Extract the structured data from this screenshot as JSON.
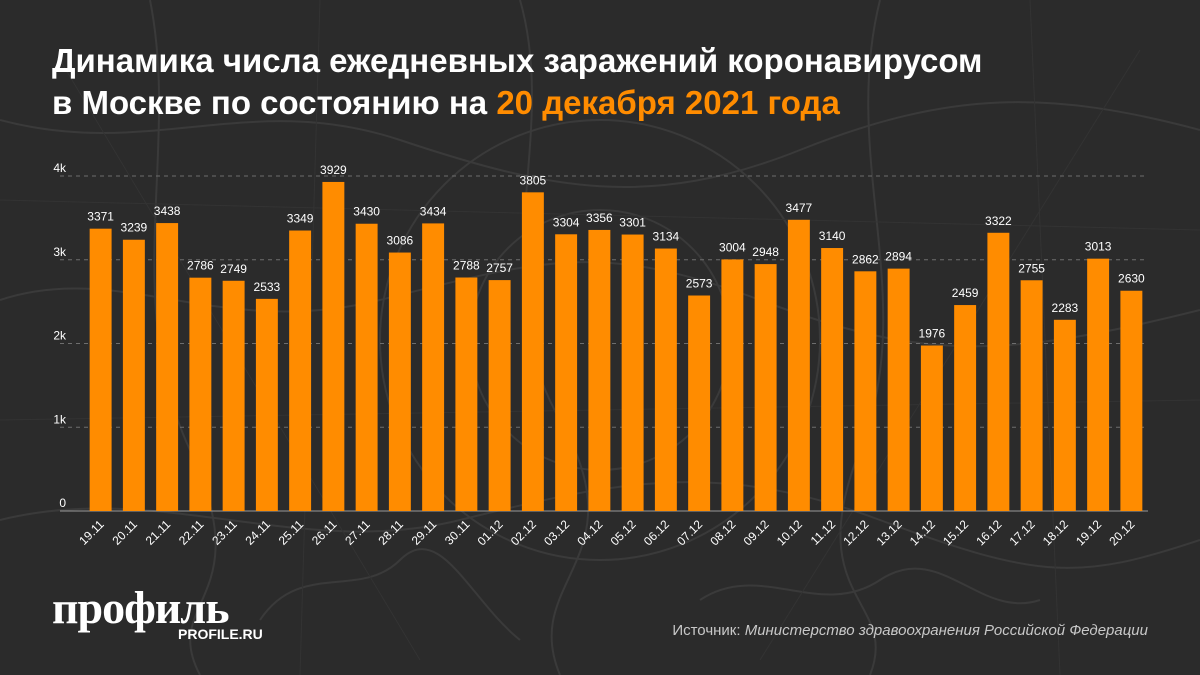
{
  "title": {
    "line1": "Динамика числа ежедневных заражений коронавирусом",
    "line2_prefix": "в Москве по состоянию на ",
    "line2_accent": "20 декабря 2021 года"
  },
  "colors": {
    "bar": "#ff8c00",
    "accent": "#ff8c00",
    "background": "#2b2b2b"
  },
  "chart_data": {
    "type": "bar",
    "categories": [
      "19.11",
      "20.11",
      "21.11",
      "22.11",
      "23.11",
      "24.11",
      "25.11",
      "26.11",
      "27.11",
      "28.11",
      "29.11",
      "30.11",
      "01.12",
      "02.12",
      "03.12",
      "04.12",
      "05.12",
      "06.12",
      "07.12",
      "08.12",
      "09.12",
      "10.12",
      "11.12",
      "12.12",
      "13.12",
      "14.12",
      "15.12",
      "16.12",
      "17.12",
      "18.12",
      "19.12",
      "20.12"
    ],
    "values": [
      3371,
      3239,
      3438,
      2786,
      2749,
      2533,
      3349,
      3929,
      3430,
      3086,
      3434,
      2788,
      2757,
      3805,
      3304,
      3356,
      3301,
      3134,
      2573,
      3004,
      2948,
      3477,
      3140,
      2862,
      2894,
      1976,
      2459,
      3322,
      2755,
      2283,
      3013,
      2630
    ],
    "ylim": [
      0,
      4000
    ],
    "yticks": [
      0,
      1000,
      2000,
      3000,
      4000
    ],
    "ytick_labels": [
      "0",
      "1k",
      "2k",
      "3k",
      "4k"
    ],
    "grid": true
  },
  "footer": {
    "logo": "профиль",
    "logo_sub": "PROFILE.RU",
    "source_label": "Источник: ",
    "source_name": "Министерство здравоохранения Российской Федерации"
  }
}
